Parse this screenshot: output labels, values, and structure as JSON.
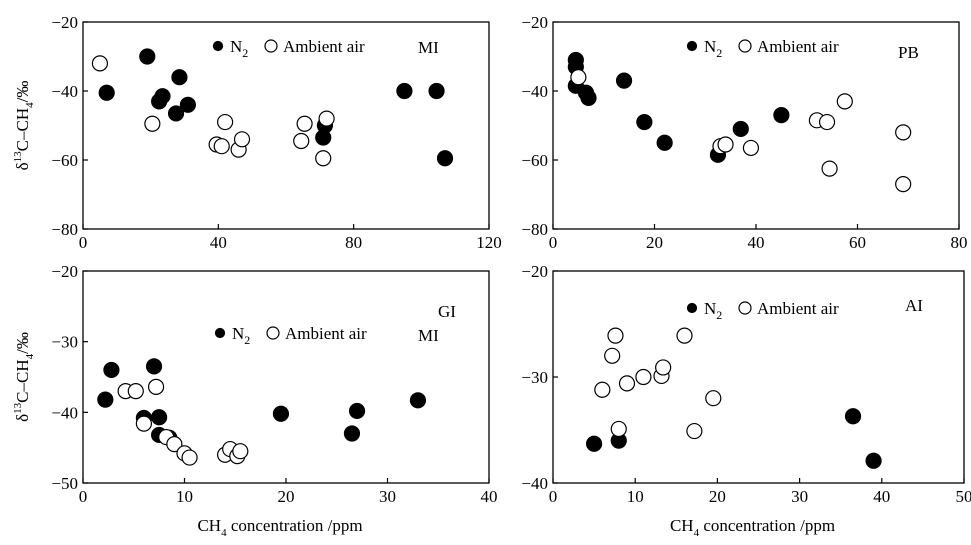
{
  "figure": {
    "y_title_main": "δ",
    "y_title_sup": "13",
    "y_title_tail": "C–CH",
    "y_title_sub": "4",
    "y_title_unit": "/‰",
    "x_title_main": "CH",
    "x_title_sub": "4",
    "x_title_tail": " concentration /ppm"
  },
  "chart_data": [
    {
      "id": "top-left",
      "type": "scatter",
      "panel_labels": [
        "MI"
      ],
      "legend_placement": "top-center",
      "xlim": [
        0,
        120
      ],
      "ylim": [
        -80,
        -20
      ],
      "x_ticks": [
        0,
        40,
        80,
        120
      ],
      "y_ticks": [
        -80,
        -60,
        -40,
        -20
      ],
      "x_axis_title": false,
      "y_axis_title": true,
      "series": [
        {
          "name": "N₂",
          "legend_main": "N",
          "legend_sub": "2",
          "marker": "filled-circle",
          "points": [
            [
              7,
              -40.5
            ],
            [
              19,
              -30
            ],
            [
              22.5,
              -43
            ],
            [
              23.5,
              -41.5
            ],
            [
              27.5,
              -46.5
            ],
            [
              28.5,
              -36
            ],
            [
              31,
              -44
            ],
            [
              71,
              -53.5
            ],
            [
              71.5,
              -50
            ],
            [
              95,
              -40
            ],
            [
              104.5,
              -40
            ],
            [
              107,
              -59.5
            ]
          ]
        },
        {
          "name": "Ambient air",
          "legend_main": "Ambient air",
          "legend_sub": "",
          "marker": "open-circle",
          "points": [
            [
              5,
              -32
            ],
            [
              20.5,
              -49.5
            ],
            [
              39.5,
              -55.5
            ],
            [
              41,
              -56
            ],
            [
              42,
              -49
            ],
            [
              46,
              -57
            ],
            [
              47,
              -54
            ],
            [
              64.5,
              -54.5
            ],
            [
              65.5,
              -49.5
            ],
            [
              71,
              -59.5
            ],
            [
              72,
              -48
            ]
          ]
        }
      ]
    },
    {
      "id": "top-right",
      "type": "scatter",
      "panel_labels": [
        "PB"
      ],
      "legend_placement": "top-center",
      "xlim": [
        0,
        80
      ],
      "ylim": [
        -80,
        -20
      ],
      "x_ticks": [
        0,
        20,
        40,
        60,
        80
      ],
      "y_ticks": [
        -80,
        -60,
        -40,
        -20
      ],
      "x_axis_title": false,
      "y_axis_title": false,
      "series": [
        {
          "name": "N₂",
          "legend_main": "N",
          "legend_sub": "2",
          "marker": "filled-circle",
          "points": [
            [
              4.5,
              -31
            ],
            [
              4.5,
              -33
            ],
            [
              4.5,
              -38.5
            ],
            [
              6.5,
              -40.5
            ],
            [
              7,
              -42
            ],
            [
              14,
              -37
            ],
            [
              18,
              -49
            ],
            [
              22,
              -55
            ],
            [
              32.5,
              -58.5
            ],
            [
              37,
              -51
            ],
            [
              45,
              -47
            ]
          ]
        },
        {
          "name": "Ambient air",
          "legend_main": "Ambient air",
          "legend_sub": "",
          "marker": "open-circle",
          "points": [
            [
              5,
              -36
            ],
            [
              33,
              -56
            ],
            [
              34,
              -55.5
            ],
            [
              39,
              -56.5
            ],
            [
              52,
              -48.5
            ],
            [
              54,
              -49
            ],
            [
              54.5,
              -62.5
            ],
            [
              57.5,
              -43
            ],
            [
              69,
              -52
            ],
            [
              69,
              -67
            ]
          ]
        }
      ]
    },
    {
      "id": "bottom-left",
      "type": "scatter",
      "panel_labels": [
        "GI",
        "MI"
      ],
      "legend_placement": "center",
      "xlim": [
        0,
        40
      ],
      "ylim": [
        -50,
        -20
      ],
      "x_ticks": [
        0,
        10,
        20,
        30,
        40
      ],
      "y_ticks": [
        -50,
        -40,
        -30,
        -20
      ],
      "x_axis_title": true,
      "y_axis_title": true,
      "series": [
        {
          "name": "N₂",
          "legend_main": "N",
          "legend_sub": "2",
          "marker": "filled-circle",
          "points": [
            [
              2.2,
              -38.2
            ],
            [
              2.8,
              -34
            ],
            [
              6,
              -40.8
            ],
            [
              7,
              -33.5
            ],
            [
              7.5,
              -43.2
            ],
            [
              7.5,
              -40.7
            ],
            [
              8.5,
              -43.6
            ],
            [
              19.5,
              -40.2
            ],
            [
              26.5,
              -43
            ],
            [
              27,
              -39.8
            ],
            [
              33,
              -38.3
            ]
          ]
        },
        {
          "name": "Ambient air",
          "legend_main": "Ambient air",
          "legend_sub": "",
          "marker": "open-circle",
          "points": [
            [
              4.2,
              -37
            ],
            [
              5.2,
              -37
            ],
            [
              6,
              -41.6
            ],
            [
              7.2,
              -36.4
            ],
            [
              8.2,
              -43.5
            ],
            [
              9,
              -44.5
            ],
            [
              10,
              -45.8
            ],
            [
              10.5,
              -46.4
            ],
            [
              14,
              -46
            ],
            [
              14.5,
              -45.2
            ],
            [
              15.2,
              -46.2
            ],
            [
              15.5,
              -45.5
            ]
          ]
        }
      ]
    },
    {
      "id": "bottom-right",
      "type": "scatter",
      "panel_labels": [
        "AI"
      ],
      "legend_placement": "top-center",
      "xlim": [
        0,
        50
      ],
      "ylim": [
        -40,
        -20
      ],
      "x_ticks": [
        0,
        10,
        20,
        30,
        40,
        50
      ],
      "y_ticks": [
        -40,
        -30,
        -20
      ],
      "x_axis_title": true,
      "y_axis_title": false,
      "series": [
        {
          "name": "N₂",
          "legend_main": "N",
          "legend_sub": "2",
          "marker": "filled-circle",
          "points": [
            [
              5,
              -36.3
            ],
            [
              8,
              -36
            ],
            [
              36.5,
              -33.7
            ],
            [
              39,
              -37.9
            ]
          ]
        },
        {
          "name": "Ambient air",
          "legend_main": "Ambient air",
          "legend_sub": "",
          "marker": "open-circle",
          "points": [
            [
              6,
              -31.2
            ],
            [
              7.2,
              -28
            ],
            [
              7.6,
              -26.1
            ],
            [
              8,
              -34.9
            ],
            [
              9,
              -30.6
            ],
            [
              11,
              -30
            ],
            [
              13.2,
              -29.9
            ],
            [
              13.4,
              -29.1
            ],
            [
              16,
              -26.1
            ],
            [
              17.2,
              -35.1
            ],
            [
              19.5,
              -32
            ]
          ]
        }
      ]
    }
  ]
}
